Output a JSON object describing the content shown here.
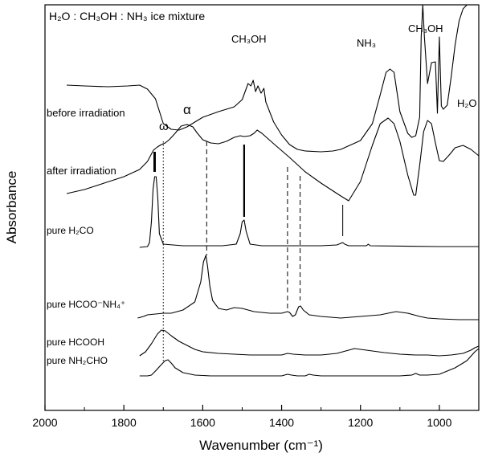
{
  "chart_data": {
    "type": "line",
    "title": "",
    "xlabel": "Wavenumber (cm⁻¹)",
    "ylabel": "Absorbance",
    "xlim": [
      2000,
      900
    ],
    "x_reversed": true,
    "y_ticks_shown": false,
    "grid": false,
    "x_ticks": [
      2000,
      1800,
      1600,
      1400,
      1200,
      1000
    ],
    "x_tick_labels": [
      "2000",
      "1800",
      "1600",
      "1400",
      "1200",
      "1000"
    ],
    "mixture_label": "H₂O : CH₃OH : NH₃ ice mixture",
    "band_labels": [
      {
        "text": "CH₃OH",
        "x": 1480
      },
      {
        "text": "NH₃",
        "x": 1185
      },
      {
        "text": "CH₃OH",
        "x": 1025
      },
      {
        "text": "H₂O",
        "x": 930
      },
      {
        "text": "ω",
        "x": 1710
      },
      {
        "text": "α",
        "x": 1630
      }
    ],
    "series": [
      {
        "name": "before irradiation",
        "label": "before irradiation",
        "x": [
          1945,
          1900,
          1840,
          1790,
          1760,
          1740,
          1720,
          1700,
          1680,
          1660,
          1640,
          1620,
          1600,
          1560,
          1520,
          1500,
          1485,
          1478,
          1472,
          1466,
          1460,
          1452,
          1445,
          1440,
          1420,
          1400,
          1380,
          1360,
          1340,
          1300,
          1270,
          1250,
          1200,
          1170,
          1150,
          1135,
          1125,
          1115,
          1100,
          1080,
          1070,
          1060,
          1050,
          1046,
          1042,
          1038,
          1030,
          1020,
          1010,
          1005,
          1000,
          995,
          990,
          980,
          970,
          960,
          950,
          940,
          930,
          920
        ],
        "y": [
          100,
          101,
          102,
          101,
          100,
          105,
          117,
          148,
          155,
          156,
          152,
          146,
          140,
          133,
          127,
          118,
          98,
          101,
          94,
          108,
          101,
          110,
          104,
          121,
          146,
          162,
          174,
          180,
          182,
          183,
          182,
          180,
          169,
          148,
          112,
          84,
          80,
          84,
          133,
          160,
          165,
          163,
          140,
          40,
          0,
          40,
          98,
          72,
          71,
          135,
          40,
          126,
          130,
          125,
          90,
          50,
          20,
          5,
          0,
          0
        ]
      },
      {
        "name": "after irradiation",
        "label": "after irradiation",
        "x": [
          1945,
          1900,
          1850,
          1800,
          1760,
          1740,
          1725,
          1715,
          1705,
          1695,
          1685,
          1670,
          1655,
          1640,
          1625,
          1615,
          1600,
          1580,
          1560,
          1540,
          1520,
          1505,
          1495,
          1480,
          1470,
          1462,
          1450,
          1420,
          1380,
          1340,
          1300,
          1250,
          1230,
          1200,
          1170,
          1150,
          1130,
          1115,
          1100,
          1080,
          1065,
          1060,
          1050,
          1040,
          1030,
          1020,
          1010,
          1000,
          990,
          975,
          960,
          940,
          920,
          900
        ],
        "y": [
          235,
          230,
          222,
          214,
          205,
          195,
          181,
          177,
          174,
          172,
          168,
          160,
          151,
          149,
          152,
          159,
          168,
          172,
          173,
          170,
          165,
          163,
          164,
          163,
          160,
          156,
          160,
          173,
          190,
          208,
          222,
          238,
          244,
          220,
          175,
          148,
          141,
          148,
          170,
          212,
          237,
          237,
          200,
          158,
          144,
          148,
          172,
          194,
          195,
          187,
          178,
          175,
          180,
          188
        ]
      },
      {
        "name": "pure H₂CO",
        "label": "pure H₂CO",
        "x": [
          1760,
          1740,
          1735,
          1730,
          1726,
          1722,
          1718,
          1714,
          1710,
          1700,
          1650,
          1600,
          1550,
          1515,
          1505,
          1500,
          1495,
          1490,
          1480,
          1450,
          1300,
          1260,
          1250,
          1245,
          1240,
          1230,
          1200,
          1185,
          1180,
          1175,
          1000,
          900
        ],
        "y": [
          302,
          301,
          296,
          270,
          230,
          214,
          214,
          240,
          285,
          298,
          300,
          300,
          300,
          298,
          285,
          270,
          268,
          282,
          298,
          300,
          300,
          299,
          297,
          296,
          298,
          300,
          300,
          300,
          298,
          300,
          301,
          301
        ]
      },
      {
        "name": "pure HCOO⁻NH₄⁺",
        "label": "pure HCOO⁻NH₄⁺",
        "x": [
          1765,
          1750,
          1740,
          1720,
          1700,
          1680,
          1650,
          1620,
          1605,
          1598,
          1592,
          1588,
          1582,
          1575,
          1560,
          1540,
          1520,
          1500,
          1470,
          1430,
          1400,
          1385,
          1380,
          1372,
          1365,
          1357,
          1352,
          1345,
          1330,
          1300,
          1250,
          1200,
          1150,
          1110,
          1080,
          1050,
          1030,
          1000,
          950,
          900
        ],
        "y": [
          390,
          388,
          386,
          385,
          384,
          384,
          380,
          370,
          345,
          320,
          312,
          325,
          350,
          368,
          378,
          380,
          377,
          378,
          382,
          384,
          384,
          382,
          383,
          388,
          386,
          376,
          375,
          380,
          386,
          388,
          390,
          388,
          386,
          382,
          384,
          388,
          390,
          391,
          392,
          392
        ]
      },
      {
        "name": "pure HCOOH",
        "label": "pure HCOOH",
        "x": [
          1760,
          1745,
          1730,
          1715,
          1705,
          1695,
          1680,
          1660,
          1640,
          1620,
          1600,
          1560,
          1520,
          1480,
          1440,
          1400,
          1385,
          1370,
          1340,
          1300,
          1260,
          1230,
          1215,
          1200,
          1170,
          1140,
          1100,
          1060,
          1030,
          1000,
          970,
          940,
          920,
          910,
          900
        ],
        "y": [
          437,
          432,
          422,
          410,
          405,
          406,
          412,
          419,
          424,
          429,
          432,
          434,
          435,
          436,
          436,
          436,
          434,
          435,
          436,
          436,
          434,
          430,
          428,
          429,
          431,
          433,
          435,
          436,
          436,
          437,
          436,
          434,
          430,
          427,
          425
        ]
      },
      {
        "name": "pure NH₂CHO",
        "label": "pure NH₂CHO",
        "x": [
          1760,
          1740,
          1730,
          1720,
          1705,
          1695,
          1688,
          1680,
          1670,
          1650,
          1620,
          1580,
          1540,
          1500,
          1450,
          1400,
          1385,
          1375,
          1360,
          1340,
          1330,
          1320,
          1300,
          1250,
          1200,
          1150,
          1100,
          1070,
          1060,
          1050,
          1030,
          1000,
          960,
          930,
          910,
          900
        ],
        "y": [
          462,
          462,
          461,
          456,
          448,
          443,
          442,
          446,
          452,
          458,
          461,
          462,
          462,
          462,
          462,
          462,
          460,
          461,
          462,
          462,
          460,
          461,
          462,
          462,
          462,
          462,
          462,
          461,
          459,
          461,
          461,
          460,
          452,
          443,
          432,
          428
        ]
      }
    ],
    "reference_lines": [
      {
        "x": 1700,
        "style": "dotted",
        "y_from": 170,
        "y_to": 445
      },
      {
        "x": 1590,
        "style": "dashed",
        "y_from": 170,
        "y_to": 312
      },
      {
        "x": 1385,
        "style": "dashed",
        "y_from": 202,
        "y_to": 378
      },
      {
        "x": 1353,
        "style": "dashed",
        "y_from": 213,
        "y_to": 368
      },
      {
        "x": 1722,
        "style": "thick",
        "y_from": 183,
        "y_to": 208
      },
      {
        "x": 1495,
        "style": "solid",
        "y_from": 174,
        "y_to": 264
      },
      {
        "x": 1245,
        "style": "thin",
        "y_from": 249,
        "y_to": 288
      }
    ]
  }
}
